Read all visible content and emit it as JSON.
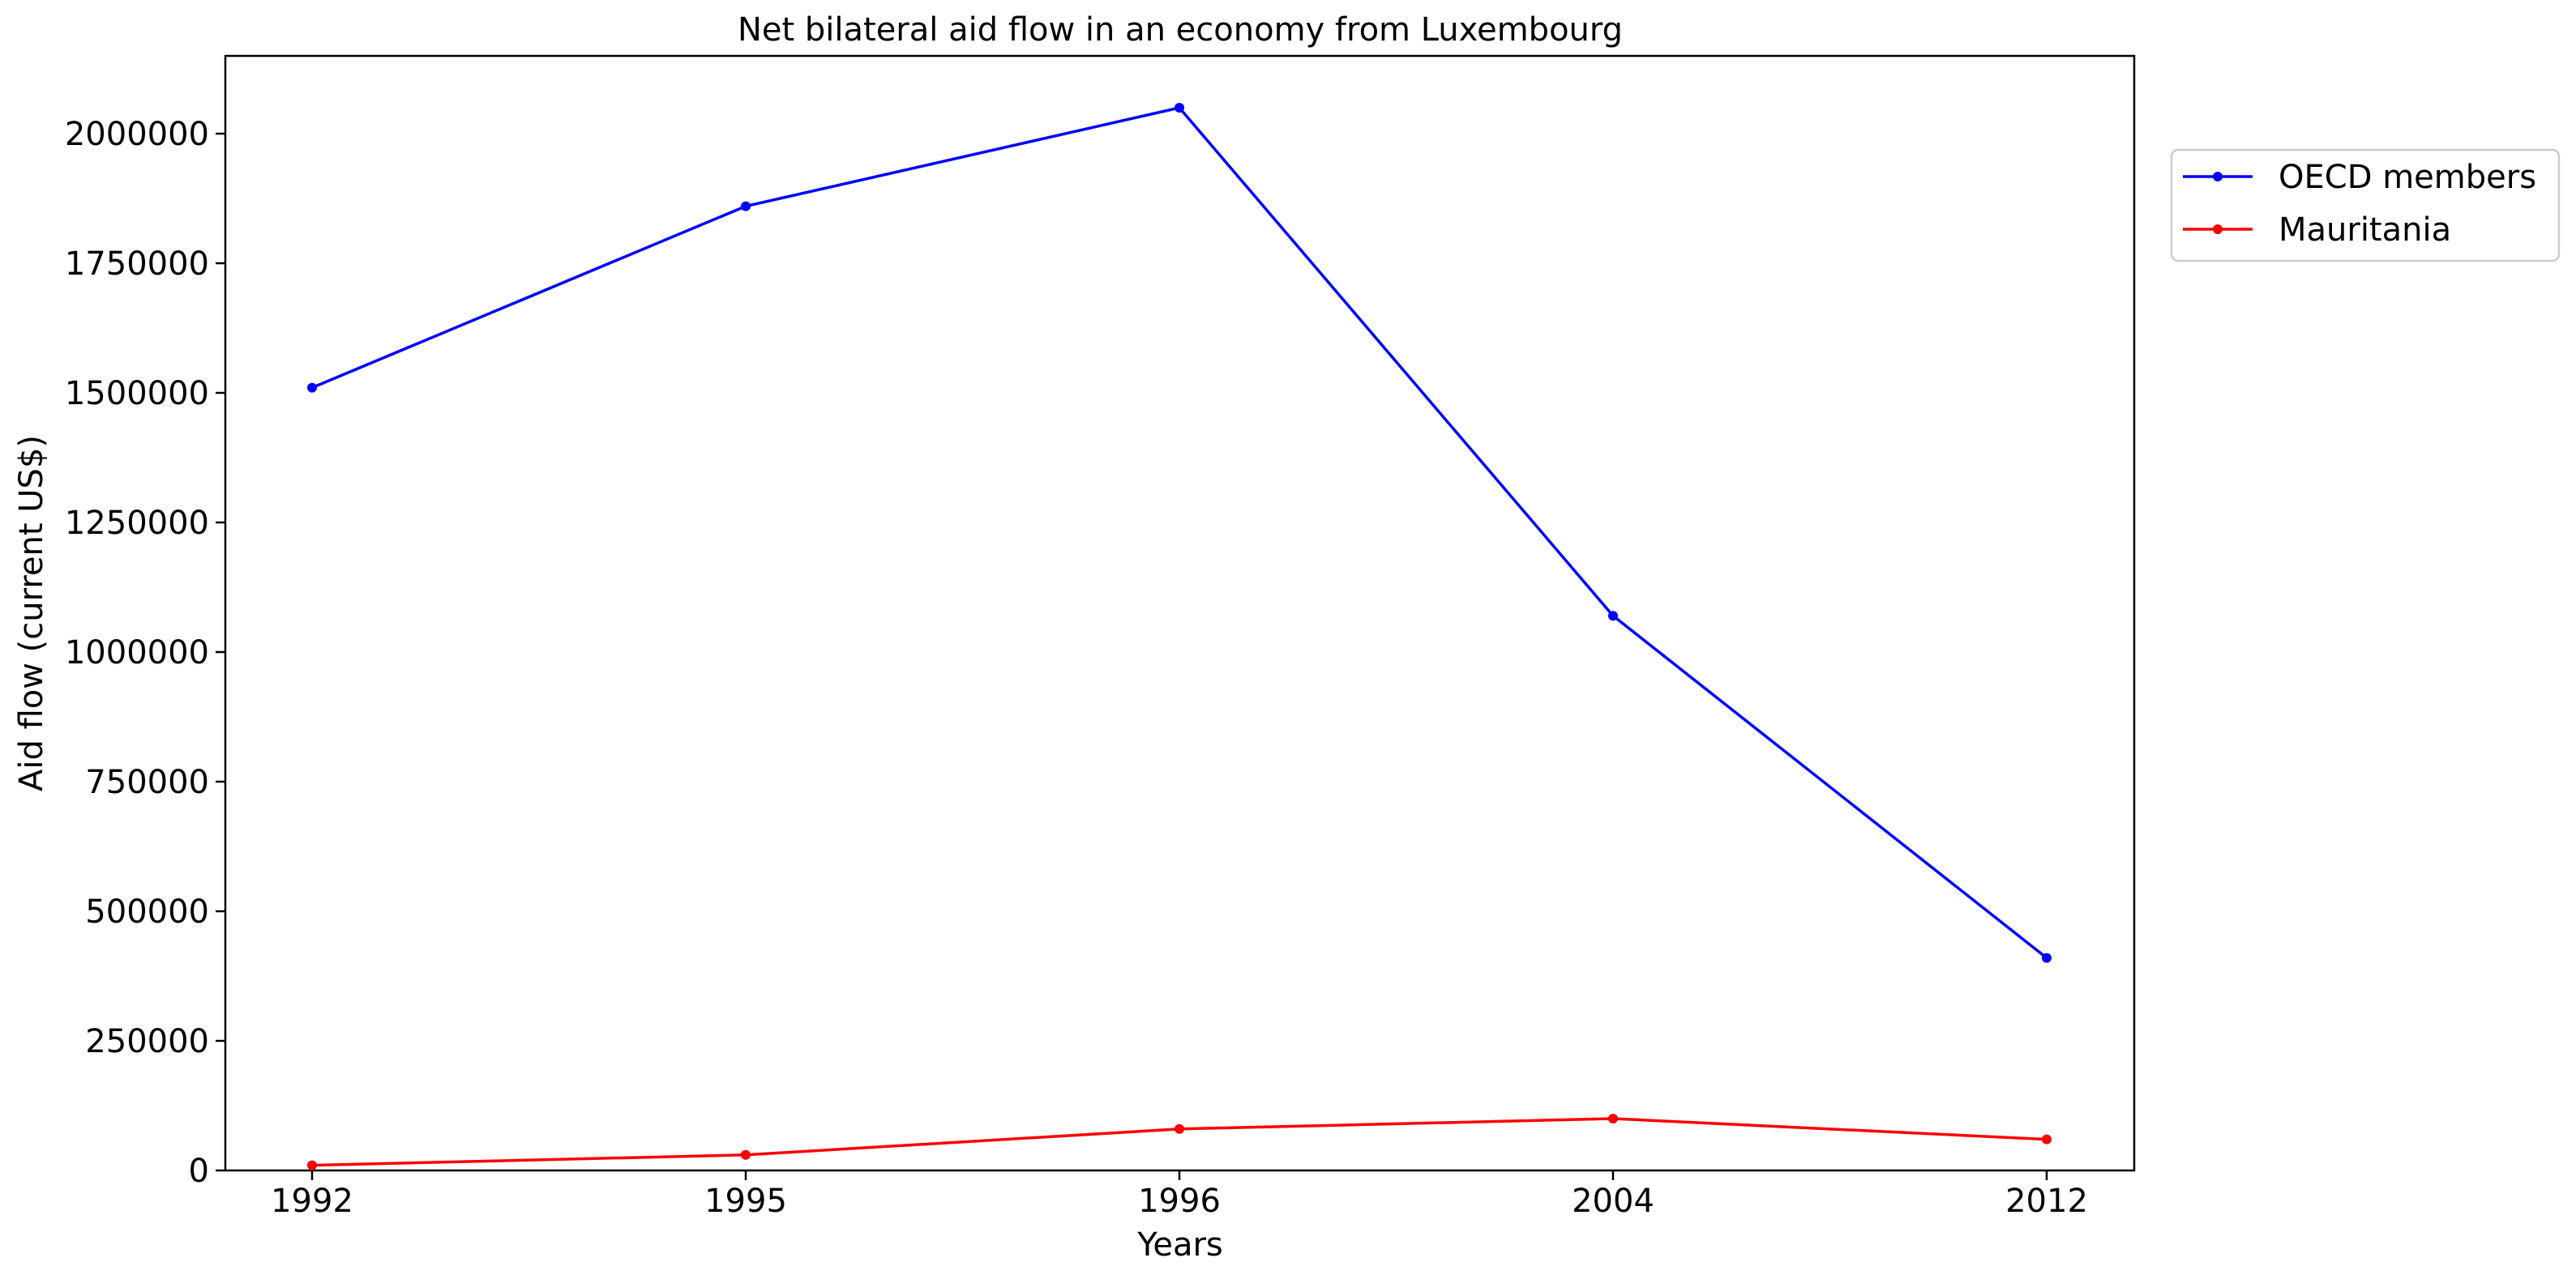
{
  "chart_data": {
    "type": "line",
    "title": "Net bilateral aid flow in an economy from Luxembourg",
    "xlabel": "Years",
    "ylabel": "Aid flow (current US$)",
    "categories": [
      "1992",
      "1995",
      "1996",
      "2004",
      "2012"
    ],
    "ylim": [
      0,
      2150000
    ],
    "yticks": [
      "0",
      "250000",
      "500000",
      "750000",
      "1000000",
      "1250000",
      "1500000",
      "1750000",
      "2000000"
    ],
    "grid": false,
    "legend_position": "upper-right, outside plot",
    "series": [
      {
        "name": "OECD members",
        "color": "#0000ff",
        "values": [
          1510000,
          1860000,
          2050000,
          1070000,
          410000
        ]
      },
      {
        "name": "Mauritania",
        "color": "#ff0000",
        "values": [
          10000,
          30000,
          80000,
          100000,
          60000
        ]
      }
    ]
  }
}
